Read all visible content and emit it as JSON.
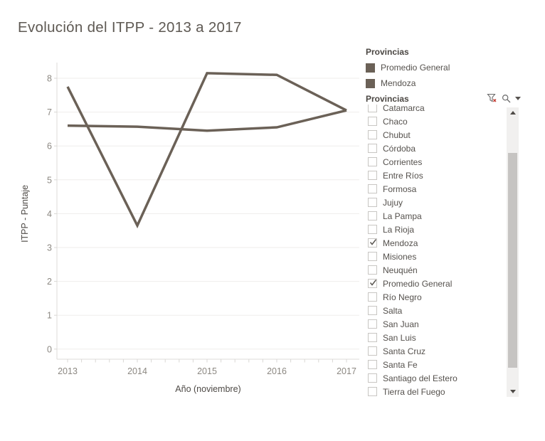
{
  "title": "Evolución del ITPP - 2013 a 2017",
  "chart_data": {
    "type": "line",
    "x": [
      2013,
      2014,
      2015,
      2016,
      2017
    ],
    "series": [
      {
        "name": "Promedio General",
        "values": [
          6.6,
          6.57,
          6.45,
          6.55,
          7.05
        ],
        "color": "#6b6157"
      },
      {
        "name": "Mendoza",
        "values": [
          7.75,
          3.65,
          8.15,
          8.1,
          7.05
        ],
        "color": "#6b6157"
      }
    ],
    "title": "Evolución del ITPP - 2013 a 2017",
    "xlabel": "Año (noviembre)",
    "ylabel": "ITPP - Puntaje",
    "ylim": [
      0,
      8
    ],
    "yticks": [
      0,
      1,
      2,
      3,
      4,
      5,
      6,
      7,
      8
    ],
    "grid": "horizontal",
    "legend_position": "right"
  },
  "legend": {
    "title": "Provincias",
    "items": [
      {
        "label": "Promedio General",
        "color": "#6b6157"
      },
      {
        "label": "Mendoza",
        "color": "#6b6157"
      }
    ]
  },
  "filter": {
    "title": "Provincias",
    "icons": {
      "clear_filter": "funnel-with-red-x",
      "search": "magnifier",
      "menu": "triangle-down-caret"
    },
    "items": [
      {
        "label": "Catamarca",
        "checked": false
      },
      {
        "label": "Chaco",
        "checked": false
      },
      {
        "label": "Chubut",
        "checked": false
      },
      {
        "label": "Córdoba",
        "checked": false
      },
      {
        "label": "Corrientes",
        "checked": false
      },
      {
        "label": "Entre Ríos",
        "checked": false
      },
      {
        "label": "Formosa",
        "checked": false
      },
      {
        "label": "Jujuy",
        "checked": false
      },
      {
        "label": "La Pampa",
        "checked": false
      },
      {
        "label": "La Rioja",
        "checked": false
      },
      {
        "label": "Mendoza",
        "checked": true
      },
      {
        "label": "Misiones",
        "checked": false
      },
      {
        "label": "Neuquén",
        "checked": false
      },
      {
        "label": "Promedio General",
        "checked": true
      },
      {
        "label": "Río Negro",
        "checked": false
      },
      {
        "label": "Salta",
        "checked": false
      },
      {
        "label": "San Juan",
        "checked": false
      },
      {
        "label": "San Luis",
        "checked": false
      },
      {
        "label": "Santa Cruz",
        "checked": false
      },
      {
        "label": "Santa Fe",
        "checked": false
      },
      {
        "label": "Santiago del Estero",
        "checked": false
      },
      {
        "label": "Tierra del Fuego",
        "checked": false
      }
    ],
    "scrollbar": {
      "up_icon": "triangle-up",
      "down_icon": "triangle-down"
    }
  },
  "colors": {
    "series": "#6b6157",
    "axis_text": "#8c8882",
    "axis_title": "#4e4a46",
    "gridline": "#efedeb",
    "axis_line": "#dddbd8",
    "tick": "#d9d7d4"
  }
}
